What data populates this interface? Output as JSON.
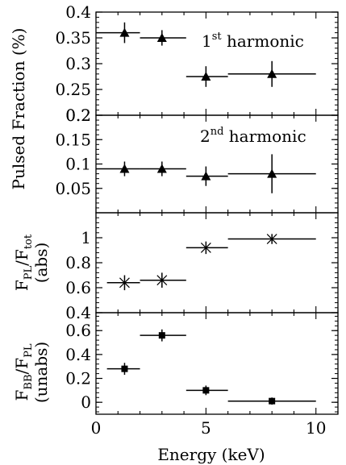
{
  "chart_data": [
    {
      "type": "scatter",
      "ylabel": "Pulsed Fraction (%)",
      "annotation": {
        "prefix": "1",
        "sup": "st",
        "suffix": " harmonic"
      },
      "xlim": [
        0,
        11
      ],
      "ylim": [
        0.2,
        0.4
      ],
      "yticks": [
        0.2,
        0.25,
        0.3,
        0.35,
        0.4
      ],
      "ytick_labels": [
        "0.2",
        "0.25",
        "0.3",
        "0.35",
        "0.4"
      ],
      "marker": "triangle",
      "points": [
        {
          "x": 1.3,
          "xlo": 0.0,
          "xhi": 2.0,
          "y": 0.36,
          "ylo": 0.34,
          "yhi": 0.38
        },
        {
          "x": 3.0,
          "xlo": 2.0,
          "xhi": 4.1,
          "y": 0.35,
          "ylo": 0.335,
          "yhi": 0.365
        },
        {
          "x": 5.0,
          "xlo": 4.1,
          "xhi": 6.0,
          "y": 0.275,
          "ylo": 0.255,
          "yhi": 0.295
        },
        {
          "x": 8.0,
          "xlo": 6.0,
          "xhi": 10.0,
          "y": 0.28,
          "ylo": 0.255,
          "yhi": 0.305
        }
      ]
    },
    {
      "type": "scatter",
      "annotation": {
        "prefix": "2",
        "sup": "nd",
        "suffix": " harmonic"
      },
      "xlim": [
        0,
        11
      ],
      "ylim": [
        0.0,
        0.2
      ],
      "yticks": [
        0.05,
        0.1,
        0.15,
        0.2
      ],
      "ytick_labels": [
        "0.05",
        "0.1",
        "0.15",
        "0.2"
      ],
      "marker": "triangle",
      "points": [
        {
          "x": 1.3,
          "xlo": 0.0,
          "xhi": 2.0,
          "y": 0.09,
          "ylo": 0.075,
          "yhi": 0.105
        },
        {
          "x": 3.0,
          "xlo": 2.0,
          "xhi": 4.1,
          "y": 0.09,
          "ylo": 0.075,
          "yhi": 0.105
        },
        {
          "x": 5.0,
          "xlo": 4.1,
          "xhi": 6.0,
          "y": 0.075,
          "ylo": 0.055,
          "yhi": 0.095
        },
        {
          "x": 8.0,
          "xlo": 6.0,
          "xhi": 10.0,
          "y": 0.08,
          "ylo": 0.04,
          "yhi": 0.12
        }
      ]
    },
    {
      "type": "scatter",
      "ylabel": {
        "base": "F",
        "sub1": "PL",
        "mid": "/F",
        "sub2": "tot",
        "line2": "(abs)"
      },
      "xlim": [
        0,
        11
      ],
      "ylim": [
        0.4,
        1.2
      ],
      "yticks": [
        0.4,
        0.6,
        0.8,
        1.0
      ],
      "ytick_labels": [
        "0.4",
        "0.6",
        "0.8",
        "1"
      ],
      "marker": "asterisk",
      "points": [
        {
          "x": 1.3,
          "xlo": 0.5,
          "xhi": 2.0,
          "y": 0.64,
          "ylo": 0.58,
          "yhi": 0.7
        },
        {
          "x": 3.0,
          "xlo": 2.0,
          "xhi": 4.1,
          "y": 0.66,
          "ylo": 0.6,
          "yhi": 0.72
        },
        {
          "x": 5.0,
          "xlo": 4.1,
          "xhi": 6.0,
          "y": 0.92,
          "ylo": 0.87,
          "yhi": 0.97
        },
        {
          "x": 8.0,
          "xlo": 6.0,
          "xhi": 10.0,
          "y": 0.99,
          "ylo": 0.95,
          "yhi": 1.03
        }
      ]
    },
    {
      "type": "scatter",
      "ylabel": {
        "base": "F",
        "sub1": "BB",
        "mid": "/F",
        "sub2": "PL",
        "line2": "(unabs)"
      },
      "xlabel": "Energy (keV)",
      "xlim": [
        0,
        11
      ],
      "ylim": [
        -0.1,
        0.75
      ],
      "yticks": [
        0.0,
        0.2,
        0.4,
        0.6
      ],
      "ytick_labels": [
        "0",
        "0.2",
        "0.4",
        "0.6"
      ],
      "xticks": [
        0,
        5,
        10
      ],
      "xtick_labels": [
        "0",
        "5",
        "10"
      ],
      "marker": "square",
      "points": [
        {
          "x": 1.3,
          "xlo": 0.5,
          "xhi": 2.0,
          "y": 0.28,
          "ylo": 0.23,
          "yhi": 0.33
        },
        {
          "x": 3.0,
          "xlo": 2.0,
          "xhi": 4.1,
          "y": 0.56,
          "ylo": 0.51,
          "yhi": 0.61
        },
        {
          "x": 5.0,
          "xlo": 4.1,
          "xhi": 6.0,
          "y": 0.1,
          "ylo": 0.06,
          "yhi": 0.14
        },
        {
          "x": 8.0,
          "xlo": 6.0,
          "xhi": 10.0,
          "y": 0.01,
          "ylo": -0.02,
          "yhi": 0.04
        }
      ]
    }
  ]
}
